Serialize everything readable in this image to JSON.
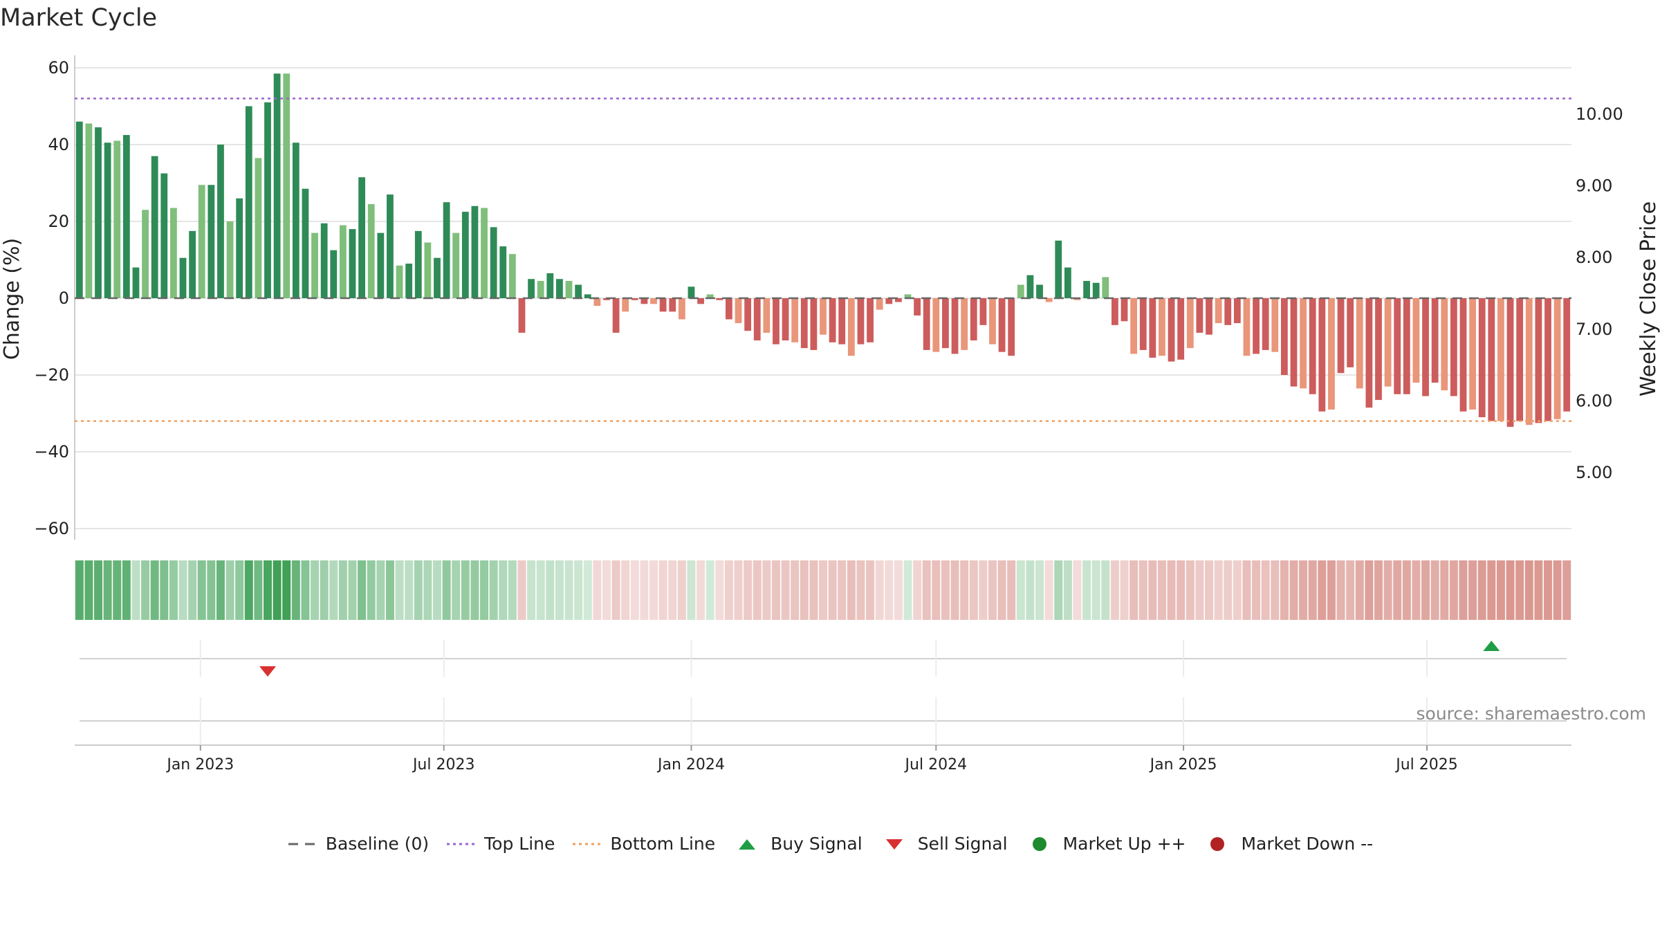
{
  "chart_data": {
    "type": "bar",
    "title": "Market Cycle",
    "ylabel_left": "Change (%)",
    "ylabel_right": "Weekly Close Price",
    "yticks_left": [
      "60",
      "40",
      "20",
      "0",
      "−20",
      "−40",
      "−60"
    ],
    "yticks_right": [
      "10.00",
      "9.00",
      "8.00",
      "7.00",
      "6.00",
      "5.00"
    ],
    "ylim_left": [
      -60,
      60
    ],
    "ylim_right": [
      4.8,
      10.0
    ],
    "top_line": 52,
    "bottom_line": -32,
    "x_start": "2022-10-03",
    "xticks": [
      {
        "date": "2023-01-01",
        "label": "Jan 2023"
      },
      {
        "date": "2023-07-01",
        "label": "Jul 2023"
      },
      {
        "date": "2024-01-01",
        "label": "Jan 2024"
      },
      {
        "date": "2024-07-01",
        "label": "Jul 2024"
      },
      {
        "date": "2025-01-01",
        "label": "Jan 2025"
      },
      {
        "date": "2025-07-01",
        "label": "Jul 2025"
      }
    ],
    "values": [
      46,
      45.5,
      44.5,
      40.5,
      41,
      42.5,
      8,
      23,
      37,
      32.5,
      23.5,
      10.5,
      17.5,
      29.5,
      29.5,
      40,
      20,
      26,
      50,
      36.5,
      51,
      58.5,
      58.5,
      40.5,
      28.5,
      17,
      19.5,
      12.5,
      19,
      18,
      31.5,
      24.5,
      17,
      27,
      8.5,
      9,
      17.5,
      14.5,
      10.5,
      25,
      17,
      22.5,
      24,
      23.5,
      18.5,
      13.5,
      11.5,
      -9,
      5,
      4.5,
      6.5,
      5,
      4.5,
      3.5,
      1,
      -2,
      -0.5,
      -9,
      -3.5,
      -0.5,
      -1.5,
      -1.5,
      -3.5,
      -3.5,
      -5.5,
      3,
      -1.5,
      1,
      -0.5,
      -5.5,
      -6.5,
      -8.5,
      -11,
      -9,
      -12,
      -11,
      -11.5,
      -13,
      -13.5,
      -9.5,
      -11.5,
      -12,
      -15,
      -12,
      -11.5,
      -3,
      -1.5,
      -1,
      1,
      -4.5,
      -13.5,
      -14,
      -13,
      -14.5,
      -13.5,
      -11,
      -7,
      -12,
      -14,
      -15,
      3.5,
      6,
      3.5,
      -1,
      15,
      8,
      -0.5,
      4.5,
      4,
      5.5,
      -7,
      -6,
      -14.5,
      -13.5,
      -15.5,
      -15,
      -16.5,
      -16,
      -13,
      -9,
      -9.5,
      -6.5,
      -7,
      -6.5,
      -15,
      -14.5,
      -13.5,
      -14,
      -20,
      -23,
      -23.5,
      -25,
      -29.5,
      -29,
      -19.5,
      -18,
      -23.5,
      -28.5,
      -26.5,
      -23,
      -25,
      -25,
      -22,
      -25.5,
      -22,
      -24,
      -25.5,
      -29.5,
      -29,
      -31,
      -32,
      -32,
      -33.5,
      -32,
      -33,
      -32.5,
      -32,
      -31.5,
      -29.5
    ],
    "sell_signals": [
      "2023-02-20"
    ],
    "buy_signals": [
      "2025-08-18"
    ]
  },
  "source_text": "source: sharemaestro.com",
  "legend": [
    {
      "label": "Baseline (0)",
      "symbol": "dash",
      "color": "#666666"
    },
    {
      "label": "Top Line",
      "symbol": "dot",
      "color": "#9966cc"
    },
    {
      "label": "Bottom Line",
      "symbol": "dot",
      "color": "#f0a060"
    },
    {
      "label": "Buy Signal",
      "symbol": "triangle-up",
      "color": "#1f9e45"
    },
    {
      "label": "Sell Signal",
      "symbol": "triangle-down",
      "color": "#d93030"
    },
    {
      "label": "Market Up ++",
      "symbol": "circle",
      "color": "#1e8a2e"
    },
    {
      "label": "Market Down --",
      "symbol": "circle",
      "color": "#b22222"
    }
  ],
  "colors": {
    "up_strong": "#2e8b57",
    "up_light": "#7fbf7b",
    "down_strong": "#cd5c5c",
    "down_light": "#e9967a",
    "grid": "#e5e5e5",
    "axis": "#cccccc"
  }
}
